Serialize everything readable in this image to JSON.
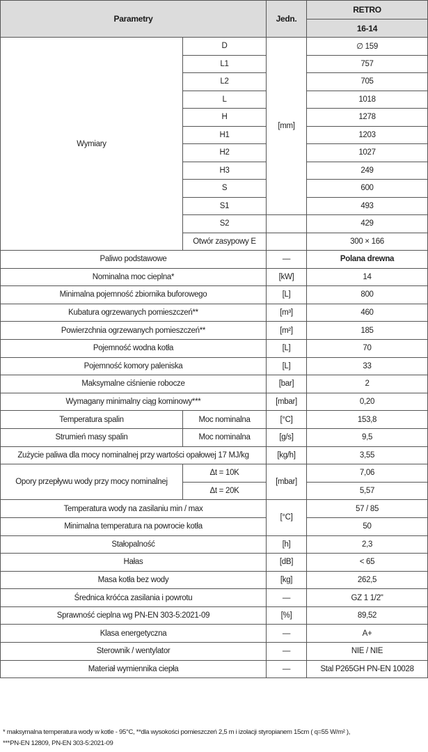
{
  "header": {
    "parametry": "Parametry",
    "jedn": "Jedn.",
    "model": "RETRO",
    "variant": "16-14"
  },
  "wymiary": {
    "label": "Wymiary",
    "unit_mm": "[mm]",
    "rows": [
      {
        "name": "D",
        "value": "∅ 159"
      },
      {
        "name": "L1",
        "value": "757"
      },
      {
        "name": "L2",
        "value": "705"
      },
      {
        "name": "L",
        "value": "1018"
      },
      {
        "name": "H",
        "value": "1278"
      },
      {
        "name": "H1",
        "value": "1203"
      },
      {
        "name": "H2",
        "value": "1027"
      },
      {
        "name": "H3",
        "value": "249"
      },
      {
        "name": "S",
        "value": "600"
      },
      {
        "name": "S1",
        "value": "493"
      },
      {
        "name": "S2",
        "value": "429"
      },
      {
        "name": "Otwór zasypowy E",
        "value": "300 × 166"
      }
    ]
  },
  "rows": {
    "paliwo": {
      "label": "Paliwo podstawowe",
      "unit": "—",
      "value": "Polana drewna"
    },
    "moc": {
      "label": "Nominalna moc cieplna*",
      "unit": "[kW]",
      "value": "14"
    },
    "zbiornik": {
      "label": "Minimalna pojemność zbiornika buforowego",
      "unit": "[L]",
      "value": "800"
    },
    "kubatura": {
      "label": "Kubatura ogrzewanych pomieszczeń**",
      "unit": "[m³]",
      "value": "460"
    },
    "powierzchnia": {
      "label": "Powierzchnia ogrzewanych pomieszczeń**",
      "unit": "[m²]",
      "value": "185"
    },
    "wodna": {
      "label": "Pojemność wodna kotła",
      "unit": "[L]",
      "value": "70"
    },
    "komora": {
      "label": "Pojemność komory paleniska",
      "unit": "[L]",
      "value": "33"
    },
    "cisnienie": {
      "label": "Maksymalne ciśnienie robocze",
      "unit": "[bar]",
      "value": "2"
    },
    "ciag": {
      "label": "Wymagany minimalny ciąg kominowy***",
      "unit": "[mbar]",
      "value": "0,20"
    },
    "temp_spalin": {
      "label": "Temperatura spalin",
      "sub": "Moc nominalna",
      "unit": "[°C]",
      "value": "153,8"
    },
    "strumien": {
      "label": "Strumień masy spalin",
      "sub": "Moc nominalna",
      "unit": "[g/s]",
      "value": "9,5"
    },
    "zuzycie": {
      "label": "Zużycie paliwa dla mocy nominalnej przy wartości opałowej 17 MJ/kg",
      "unit": "[kg/h]",
      "value": "3,55"
    },
    "opory": {
      "label": "Opory przepływu wody przy mocy nominalnej",
      "unit": "[mbar]",
      "sub1": "Δt = 10K",
      "value1": "7,06",
      "sub2": "Δt = 20K",
      "value2": "5,57"
    },
    "temp_zasilanie": {
      "label": "Temperatura wody na zasilaniu min / max",
      "value": "57 / 85"
    },
    "temp_powrot": {
      "label": "Minimalna temperatura na powrocie kotła",
      "value": "50"
    },
    "temp_unit": "[°C]",
    "stalopalnosc": {
      "label": "Stałopalność",
      "unit": "[h]",
      "value": "2,3"
    },
    "halas": {
      "label": "Hałas",
      "unit": "[dB]",
      "value": "< 65"
    },
    "masa": {
      "label": "Masa kotła bez wody",
      "unit": "[kg]",
      "value": "262,5"
    },
    "srednica": {
      "label": "Średnica króćca zasilania i powrotu",
      "unit": "—",
      "value": "GZ 1 1/2\""
    },
    "sprawnosc": {
      "label": "Sprawność cieplna wg PN-EN 303-5:2021-09",
      "unit": "[%]",
      "value": "89,52"
    },
    "klasa": {
      "label": "Klasa energetyczna",
      "unit": "—",
      "value": "A+"
    },
    "sterownik": {
      "label": "Sterownik / wentylator",
      "unit": "—",
      "value": "NIE / NIE"
    },
    "material": {
      "label": "Materiał wymiennika ciepła",
      "unit": "—",
      "value": "Stal P265GH PN-EN 10028"
    }
  },
  "footnote": {
    "line1": "* maksymalna temperatura wody w kotle - 95°C, **dla wysokości pomieszczeń 2,5 m i izolacji styropianem 15cm ( q=55 W/m² ),",
    "line2": "***PN-EN 12809, PN-EN 303-5:2021-09"
  }
}
